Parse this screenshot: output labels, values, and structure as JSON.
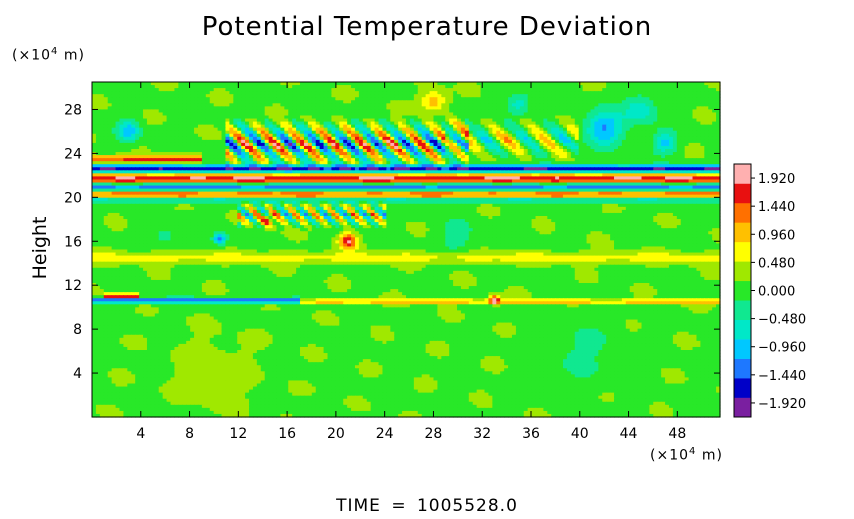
{
  "chart_data": {
    "type": "heatmap",
    "title": "Potential Temperature Deviation",
    "ylabel": "Height",
    "x_unit": "(×10",
    "x_unit_exp": "4",
    "x_unit_suffix": " m)",
    "y_unit": "(×10",
    "y_unit_exp": "4",
    "y_unit_suffix": " m)",
    "xlim": [
      0,
      51.5
    ],
    "ylim": [
      0,
      30.5
    ],
    "xticks": [
      4,
      8,
      12,
      16,
      20,
      24,
      28,
      32,
      36,
      40,
      44,
      48
    ],
    "xtick_labels": [
      "4",
      "8",
      "12",
      "16",
      "20",
      "24",
      "28",
      "32",
      "36",
      "40",
      "44",
      "48"
    ],
    "yticks": [
      4,
      8,
      12,
      16,
      20,
      24,
      28
    ],
    "ytick_labels": [
      "4",
      "8",
      "12",
      "16",
      "20",
      "24",
      "28"
    ],
    "colorbar": {
      "range": [
        -2.16,
        2.16
      ],
      "colors": [
        "#7a1fa0",
        "#0000c8",
        "#1e78ff",
        "#00c8ff",
        "#00e8c8",
        "#10e890",
        "#28e828",
        "#a0e800",
        "#ffff00",
        "#ffc000",
        "#ff7000",
        "#e81010",
        "#ffb0b0"
      ],
      "labels": [
        "1.920",
        "1.440",
        "0.960",
        "0.480",
        "0.000",
        "−0.480",
        "−0.960",
        "−1.440",
        "−1.920"
      ],
      "label_values": [
        1.92,
        1.44,
        0.96,
        0.48,
        0.0,
        -0.48,
        -0.96,
        -1.44,
        -1.92
      ]
    },
    "background_value": 0.1,
    "features": [
      {
        "kind": "band",
        "y": 21.6,
        "thickness": 0.5,
        "value": 2.1,
        "x_range": [
          0,
          51.5
        ]
      },
      {
        "kind": "band",
        "y": 20.9,
        "thickness": 0.55,
        "value": -2.1,
        "x_range": [
          0,
          51.5
        ]
      },
      {
        "kind": "band",
        "y": 20.3,
        "thickness": 0.5,
        "value": 2.0,
        "x_range": [
          0,
          51.5
        ]
      },
      {
        "kind": "band",
        "y": 22.6,
        "thickness": 0.35,
        "value": -1.9,
        "x_range": [
          0,
          51.5
        ]
      },
      {
        "kind": "band",
        "y": 19.8,
        "thickness": 0.3,
        "value": -1.3,
        "x_range": [
          0,
          51.5
        ]
      },
      {
        "kind": "band",
        "y": 23.5,
        "thickness": 0.3,
        "value": 1.5,
        "x_range": [
          0,
          9
        ]
      },
      {
        "kind": "band",
        "y": 10.6,
        "thickness": 0.25,
        "value": -1.6,
        "x_range": [
          0,
          17
        ]
      },
      {
        "kind": "band",
        "y": 11.0,
        "thickness": 0.2,
        "value": 1.8,
        "x_range": [
          1,
          4
        ]
      },
      {
        "kind": "band",
        "y": 10.5,
        "thickness": 0.2,
        "value": 1.0,
        "x_range": [
          17,
          51.5
        ]
      },
      {
        "kind": "band",
        "y": 14.5,
        "thickness": 0.5,
        "value": 0.55,
        "x_range": [
          0,
          51.5
        ]
      },
      {
        "kind": "blob",
        "x": 21,
        "y": 16.0,
        "r": 0.7,
        "value": 1.8
      },
      {
        "kind": "blob",
        "x": 10.5,
        "y": 16.2,
        "r": 0.5,
        "value": -1.6
      },
      {
        "kind": "blob",
        "x": 33,
        "y": 10.7,
        "r": 0.4,
        "value": 1.9
      },
      {
        "kind": "blob",
        "x": 3,
        "y": 26.0,
        "r": 0.9,
        "value": -1.2
      },
      {
        "kind": "blob",
        "x": 42,
        "y": 26.3,
        "r": 1.6,
        "value": -1.3
      },
      {
        "kind": "blob",
        "x": 47,
        "y": 25.0,
        "r": 1.0,
        "value": -1.0
      },
      {
        "kind": "blob",
        "x": 28,
        "y": 28.8,
        "r": 1.0,
        "value": 1.0
      },
      {
        "kind": "blob",
        "x": 35,
        "y": 28.5,
        "r": 1.0,
        "value": -0.8
      },
      {
        "kind": "blob",
        "x": 45,
        "y": 28.0,
        "r": 1.3,
        "value": -0.9
      },
      {
        "kind": "blob",
        "x": 14.5,
        "y": 18.0,
        "r": 0.6,
        "value": 1.3
      },
      {
        "kind": "blob",
        "x": 6,
        "y": 16.5,
        "r": 0.8,
        "value": -0.5
      },
      {
        "kind": "blob",
        "x": 30,
        "y": 16.5,
        "r": 1.5,
        "value": -0.5
      },
      {
        "kind": "blob",
        "x": 40,
        "y": 6.0,
        "r": 3.0,
        "value": -0.35
      },
      {
        "kind": "blob",
        "x": 10,
        "y": 4.0,
        "r": 3.0,
        "value": 0.3
      }
    ],
    "waves": [
      {
        "x_range": [
          11,
          31
        ],
        "y_range": [
          22.2,
          27.5
        ],
        "x_period": 2.4,
        "amplitude": 1.9
      },
      {
        "x_range": [
          29,
          40
        ],
        "y_range": [
          23.0,
          27.5
        ],
        "x_period": 3.2,
        "amplitude": 1.1
      },
      {
        "x_range": [
          12,
          24
        ],
        "y_range": [
          17.0,
          19.8
        ],
        "x_period": 1.6,
        "amplitude": 1.5
      }
    ]
  },
  "footer": {
    "time_label": "TIME",
    "time_sep": "=",
    "time_value": "1005528.0"
  }
}
